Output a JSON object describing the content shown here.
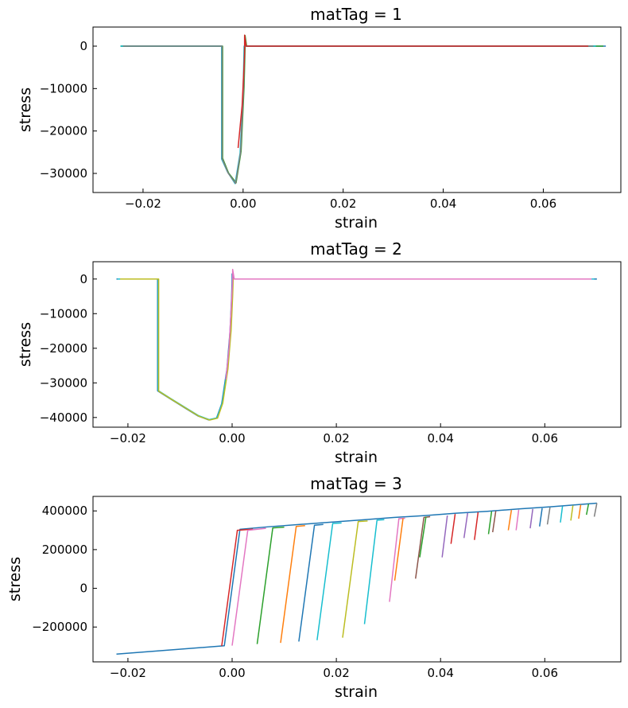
{
  "chart_data": [
    {
      "type": "line",
      "title": "matTag = 1",
      "xlabel": "strain",
      "ylabel": "stress",
      "xlim": [
        -0.03,
        0.0755
      ],
      "ylim": [
        -34500,
        4500
      ],
      "xticks": [
        -0.02,
        0.0,
        0.02,
        0.04,
        0.06
      ],
      "xtick_labels": [
        "−0.02",
        "0.00",
        "0.02",
        "0.04",
        "0.06"
      ],
      "yticks": [
        0,
        -10000,
        -20000,
        -30000
      ],
      "ytick_labels": [
        "0",
        "−10000",
        "−20000",
        "−30000"
      ],
      "grid": false,
      "legend": "none",
      "series": [
        {
          "color": "#1f77b4",
          "points": [
            [
              -0.0245,
              0
            ],
            [
              -0.0042,
              0
            ],
            [
              -0.0042,
              -26500
            ],
            [
              -0.003,
              -29800
            ],
            [
              -0.0015,
              -32300
            ],
            [
              -0.0005,
              -25000
            ],
            [
              0.0001,
              -10000
            ],
            [
              0.0003,
              0
            ],
            [
              0.0003,
              2200
            ],
            [
              0.0006,
              0
            ],
            [
              0.0725,
              0
            ]
          ]
        },
        {
          "color": "#2ca02c",
          "points": [
            [
              -0.0245,
              0
            ],
            [
              -0.0041,
              0
            ],
            [
              -0.0041,
              -26400
            ],
            [
              -0.0029,
              -29900
            ],
            [
              -0.0014,
              -32200
            ],
            [
              -0.0004,
              -24800
            ],
            [
              0.0002,
              -9500
            ],
            [
              0.0004,
              0
            ],
            [
              0.0004,
              2500
            ],
            [
              0.0007,
              0
            ],
            [
              0.072,
              0
            ]
          ]
        },
        {
          "color": "#17becf",
          "points": [
            [
              -0.0245,
              0
            ],
            [
              -0.0043,
              0
            ],
            [
              -0.0043,
              -26600
            ],
            [
              -0.0031,
              -29700
            ],
            [
              -0.0016,
              -32400
            ],
            [
              -0.0006,
              -25200
            ],
            [
              0.0,
              -10500
            ],
            [
              0.0002,
              0
            ],
            [
              0.0004,
              0
            ],
            [
              0.0705,
              0
            ]
          ]
        },
        {
          "color": "#7f7f7f",
          "points": [
            [
              -0.024,
              0
            ],
            [
              -0.0042,
              0
            ],
            [
              -0.0042,
              -26500
            ],
            [
              -0.003,
              -29900
            ],
            [
              -0.0015,
              -32350
            ],
            [
              -0.0005,
              -25000
            ],
            [
              0.0001,
              -10000
            ],
            [
              0.0003,
              0
            ],
            [
              0.07,
              0
            ]
          ]
        },
        {
          "color": "#d62728",
          "points": [
            [
              -0.001,
              -24000
            ],
            [
              -0.0002,
              -14000
            ],
            [
              0.0003,
              -2000
            ],
            [
              0.0003,
              2600
            ],
            [
              0.0006,
              0
            ],
            [
              0.069,
              0
            ]
          ]
        }
      ]
    },
    {
      "type": "line",
      "title": "matTag = 2",
      "xlabel": "strain",
      "ylabel": "stress",
      "xlim": [
        -0.0267,
        0.0746
      ],
      "ylim": [
        -42800,
        5000
      ],
      "xticks": [
        -0.02,
        0.0,
        0.02,
        0.04,
        0.06
      ],
      "xtick_labels": [
        "−0.02",
        "0.00",
        "0.02",
        "0.04",
        "0.06"
      ],
      "yticks": [
        0,
        -10000,
        -20000,
        -30000,
        -40000
      ],
      "ytick_labels": [
        "0",
        "−10000",
        "−20000",
        "−30000",
        "−40000"
      ],
      "grid": false,
      "legend": "none",
      "series": [
        {
          "color": "#1f77b4",
          "points": [
            [
              -0.0222,
              0
            ],
            [
              -0.0143,
              0
            ],
            [
              -0.0143,
              -32300
            ],
            [
              -0.012,
              -34500
            ],
            [
              -0.009,
              -37300
            ],
            [
              -0.0065,
              -39600
            ],
            [
              -0.0045,
              -40700
            ],
            [
              -0.003,
              -40200
            ],
            [
              -0.002,
              -36000
            ],
            [
              -0.001,
              -26000
            ],
            [
              -0.0004,
              -15000
            ],
            [
              -0.0001,
              -5000
            ],
            [
              0.0,
              0
            ],
            [
              0.0,
              1500
            ],
            [
              0.0004,
              0
            ],
            [
              0.07,
              0
            ]
          ]
        },
        {
          "color": "#17becf",
          "points": [
            [
              -0.022,
              0
            ],
            [
              -0.0142,
              0
            ],
            [
              -0.0142,
              -32200
            ],
            [
              -0.0119,
              -34400
            ],
            [
              -0.0089,
              -37200
            ],
            [
              -0.0064,
              -39500
            ],
            [
              -0.0044,
              -40600
            ],
            [
              -0.0029,
              -40100
            ],
            [
              -0.0019,
              -35800
            ],
            [
              -0.0009,
              -25800
            ],
            [
              -0.0003,
              -14800
            ],
            [
              0.0,
              -4800
            ],
            [
              0.0001,
              0
            ],
            [
              0.0004,
              0
            ],
            [
              0.0695,
              0
            ]
          ]
        },
        {
          "color": "#bcbd22",
          "points": [
            [
              -0.0215,
              0
            ],
            [
              -0.0141,
              0
            ],
            [
              -0.0141,
              -32400
            ],
            [
              -0.0118,
              -34600
            ],
            [
              -0.0088,
              -37400
            ],
            [
              -0.0063,
              -39700
            ],
            [
              -0.0043,
              -40750
            ],
            [
              -0.0028,
              -40200
            ],
            [
              -0.0018,
              -35900
            ],
            [
              -0.0008,
              -25900
            ],
            [
              -0.0002,
              -14900
            ],
            [
              0.0001,
              -4900
            ],
            [
              0.0002,
              0
            ],
            [
              0.068,
              0
            ]
          ]
        },
        {
          "color": "#e377c2",
          "points": [
            [
              -0.0012,
              -29000
            ],
            [
              -0.0006,
              -20000
            ],
            [
              -0.0002,
              -9000
            ],
            [
              0.0001,
              0
            ],
            [
              0.0001,
              2800
            ],
            [
              0.0004,
              0
            ],
            [
              0.069,
              0
            ]
          ]
        }
      ]
    },
    {
      "type": "line",
      "title": "matTag = 3",
      "xlabel": "strain",
      "ylabel": "stress",
      "xlim": [
        -0.0267,
        0.0746
      ],
      "ylim": [
        -380000,
        475000
      ],
      "xticks": [
        -0.02,
        0.0,
        0.02,
        0.04,
        0.06
      ],
      "xtick_labels": [
        "−0.02",
        "0.00",
        "0.02",
        "0.04",
        "0.06"
      ],
      "yticks": [
        400000,
        200000,
        0,
        -200000
      ],
      "ytick_labels": [
        "400000",
        "200000",
        "0",
        "−200000"
      ],
      "grid": false,
      "legend": "none",
      "series": [
        {
          "color": "#1f77b4",
          "points": [
            [
              -0.0222,
              -340000
            ],
            [
              -0.0015,
              -297000
            ],
            [
              0.0015,
              305000
            ],
            [
              0.007,
              318000
            ],
            [
              0.013,
              330000
            ],
            [
              0.019,
              342000
            ],
            [
              0.025,
              354000
            ],
            [
              0.031,
              366000
            ],
            [
              0.037,
              376000
            ],
            [
              0.043,
              388000
            ],
            [
              0.049,
              398000
            ],
            [
              0.055,
              410000
            ],
            [
              0.061,
              421000
            ],
            [
              0.07,
              440000
            ]
          ]
        },
        {
          "color": "#d62728",
          "points": [
            [
              -0.002,
              -298000
            ],
            [
              0.001,
              300000
            ],
            [
              0.004,
              306000
            ]
          ]
        },
        {
          "color": "#e377c2",
          "points": [
            [
              0.0,
              -296000
            ],
            [
              0.003,
              300000
            ],
            [
              0.0065,
              310000
            ]
          ]
        },
        {
          "color": "#2ca02c",
          "points": [
            [
              0.0048,
              -288000
            ],
            [
              0.0078,
              312000
            ],
            [
              0.01,
              316000
            ]
          ]
        },
        {
          "color": "#ff7f0e",
          "points": [
            [
              0.0093,
              -282000
            ],
            [
              0.0123,
              320000
            ],
            [
              0.014,
              324000
            ]
          ]
        },
        {
          "color": "#1f77b4",
          "points": [
            [
              0.0128,
              -275000
            ],
            [
              0.0158,
              326000
            ],
            [
              0.0175,
              330000
            ]
          ]
        },
        {
          "color": "#17becf",
          "points": [
            [
              0.0163,
              -268000
            ],
            [
              0.0193,
              335000
            ],
            [
              0.021,
              338000
            ]
          ]
        },
        {
          "color": "#bcbd22",
          "points": [
            [
              0.0212,
              -255000
            ],
            [
              0.0242,
              345000
            ],
            [
              0.026,
              348000
            ]
          ]
        },
        {
          "color": "#17becf",
          "points": [
            [
              0.0254,
              -185000
            ],
            [
              0.0278,
              352000
            ],
            [
              0.0292,
              355000
            ]
          ]
        },
        {
          "color": "#e377c2",
          "points": [
            [
              0.0302,
              -70000
            ],
            [
              0.032,
              360000
            ],
            [
              0.0332,
              362000
            ]
          ]
        },
        {
          "color": "#ff7f0e",
          "points": [
            [
              0.0312,
              40000
            ],
            [
              0.0328,
              362000
            ]
          ]
        },
        {
          "color": "#8c564b",
          "points": [
            [
              0.0352,
              50000
            ],
            [
              0.0368,
              366000
            ],
            [
              0.038,
              370000
            ]
          ]
        },
        {
          "color": "#2ca02c",
          "points": [
            [
              0.036,
              160000
            ],
            [
              0.0372,
              370000
            ]
          ]
        },
        {
          "color": "#9467bd",
          "points": [
            [
              0.0403,
              160000
            ],
            [
              0.0413,
              376000
            ]
          ]
        },
        {
          "color": "#d62728",
          "points": [
            [
              0.042,
              230000
            ],
            [
              0.0428,
              384000
            ]
          ]
        },
        {
          "color": "#9467bd",
          "points": [
            [
              0.0445,
              260000
            ],
            [
              0.0452,
              390000
            ]
          ]
        },
        {
          "color": "#d62728",
          "points": [
            [
              0.0465,
              250000
            ],
            [
              0.0472,
              393000
            ]
          ]
        },
        {
          "color": "#2ca02c",
          "points": [
            [
              0.0492,
              280000
            ],
            [
              0.0498,
              398000
            ]
          ]
        },
        {
          "color": "#8c564b",
          "points": [
            [
              0.05,
              290000
            ],
            [
              0.0506,
              400000
            ]
          ]
        },
        {
          "color": "#ff7f0e",
          "points": [
            [
              0.053,
              300000
            ],
            [
              0.0536,
              404000
            ]
          ]
        },
        {
          "color": "#e377c2",
          "points": [
            [
              0.0545,
              300000
            ],
            [
              0.055,
              406000
            ]
          ]
        },
        {
          "color": "#9467bd",
          "points": [
            [
              0.0572,
              310000
            ],
            [
              0.0577,
              410000
            ]
          ]
        },
        {
          "color": "#1f77b4",
          "points": [
            [
              0.059,
              320000
            ],
            [
              0.0595,
              414000
            ]
          ]
        },
        {
          "color": "#7f7f7f",
          "points": [
            [
              0.0605,
              330000
            ],
            [
              0.061,
              418000
            ]
          ]
        },
        {
          "color": "#17becf",
          "points": [
            [
              0.063,
              340000
            ],
            [
              0.0634,
              424000
            ]
          ]
        },
        {
          "color": "#bcbd22",
          "points": [
            [
              0.065,
              350000
            ],
            [
              0.0654,
              428000
            ]
          ]
        },
        {
          "color": "#ff7f0e",
          "points": [
            [
              0.0665,
              360000
            ],
            [
              0.0669,
              432000
            ]
          ]
        },
        {
          "color": "#2ca02c",
          "points": [
            [
              0.068,
              380000
            ],
            [
              0.0684,
              436000
            ]
          ]
        },
        {
          "color": "#7f7f7f",
          "points": [
            [
              0.0695,
              370000
            ],
            [
              0.07,
              440000
            ]
          ]
        }
      ]
    }
  ]
}
